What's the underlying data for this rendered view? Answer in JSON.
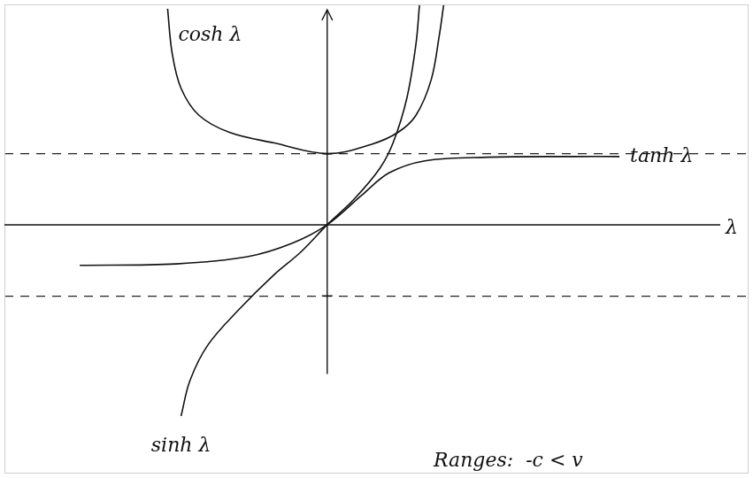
{
  "chart_data": {
    "type": "line",
    "x_label": "λ",
    "annotations": [
      "Ranges:  -c < v"
    ],
    "xlim": [
      -3.6,
      4.7
    ],
    "ylim": [
      -3.5,
      3.1
    ],
    "yticks": [
      -1,
      1
    ],
    "grid": true,
    "tick_labels": false,
    "series": [
      {
        "name": "cosh λ",
        "color": "#111111",
        "line_style": "solid",
        "x": [
          -1.78,
          -1.73,
          -1.63,
          -1.43,
          -1.09,
          -0.59,
          0,
          0.49,
          0.79,
          0.99,
          1.16,
          1.25,
          1.3
        ],
        "values": [
          3.04,
          2.42,
          1.92,
          1.54,
          1.3,
          1.15,
          1.0,
          1.13,
          1.3,
          1.54,
          2.04,
          2.66,
          3.1
        ]
      },
      {
        "name": "tanh λ",
        "color": "#111111",
        "line_style": "solid",
        "x": [
          -2.76,
          -1.68,
          -0.89,
          -0.39,
          0,
          0.39,
          0.69,
          1.09,
          1.78,
          2.76,
          3.26
        ],
        "values": [
          -0.57,
          -0.55,
          -0.45,
          -0.26,
          0,
          0.42,
          0.73,
          0.9,
          0.95,
          0.96,
          0.96
        ]
      },
      {
        "name": "sinh λ",
        "color": "#111111",
        "line_style": "solid",
        "x": [
          -1.63,
          -1.53,
          -1.33,
          -0.99,
          -0.59,
          -0.3,
          0,
          0.3,
          0.59,
          0.74,
          0.89,
          0.99,
          1.03
        ],
        "values": [
          -2.69,
          -2.19,
          -1.69,
          -1.2,
          -0.7,
          -0.39,
          0,
          0.36,
          0.8,
          1.17,
          1.79,
          2.54,
          3.1
        ]
      }
    ]
  }
}
